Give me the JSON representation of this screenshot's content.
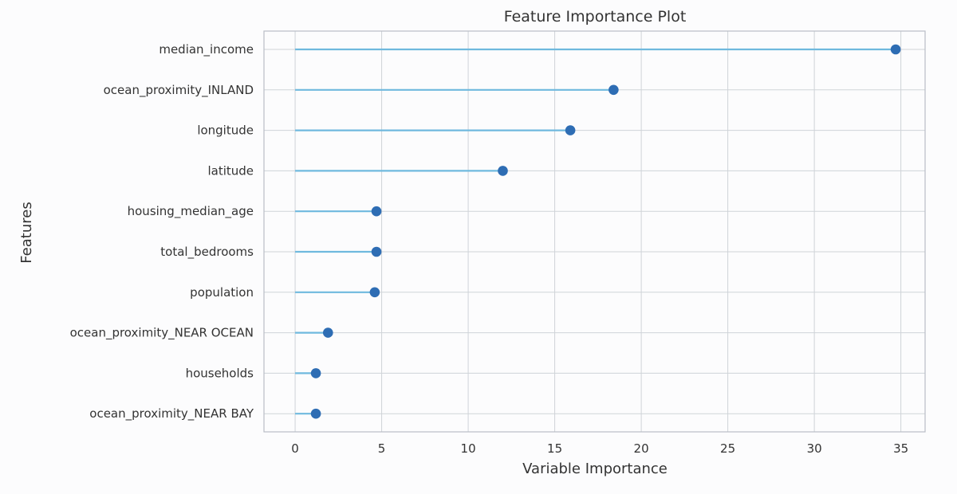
{
  "chart_data": {
    "type": "lollipop",
    "title": "Feature Importance Plot",
    "xlabel": "Variable Importance",
    "ylabel": "Features",
    "xlim": [
      -1.8,
      36.4
    ],
    "xticks": [
      0,
      5,
      10,
      15,
      20,
      25,
      30,
      35
    ],
    "grid": true,
    "legend": false,
    "colors": {
      "stem": "#6fb9de",
      "marker": "#2e6db4",
      "grid": "#cfd3d8",
      "frame": "#b9bec6"
    },
    "categories": [
      "median_income",
      "ocean_proximity_INLAND",
      "longitude",
      "latitude",
      "housing_median_age",
      "total_bedrooms",
      "population",
      "ocean_proximity_NEAR OCEAN",
      "households",
      "ocean_proximity_NEAR BAY"
    ],
    "values": [
      34.7,
      18.4,
      15.9,
      12.0,
      4.7,
      4.7,
      4.6,
      1.9,
      1.2,
      1.2
    ]
  }
}
